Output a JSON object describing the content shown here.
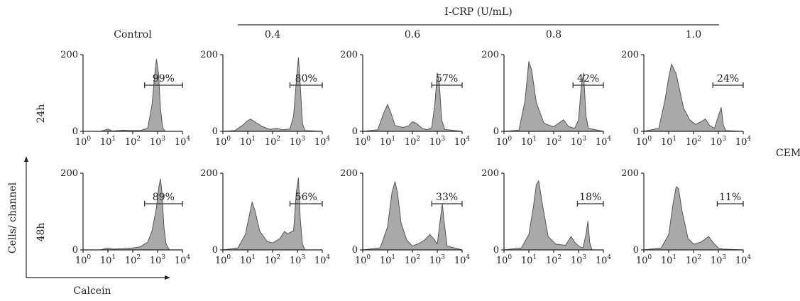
{
  "figure": {
    "header": "I-CRP (U/mL)",
    "row_labels": [
      "24h",
      "48h"
    ],
    "y_axis_label": "Cells/ channel",
    "x_axis_label": "Calcein",
    "side_label": "CEM",
    "col_titles": [
      "Control",
      "0.4",
      "0.6",
      "0.8",
      "1.0"
    ]
  },
  "chart_data": {
    "type": "area",
    "xscale": "log",
    "xlim": [
      1,
      10000
    ],
    "ylim": [
      0,
      200
    ],
    "y_ticks": [
      "0",
      "200"
    ],
    "x_ticks": [
      {
        "base": "10",
        "exp": "0"
      },
      {
        "base": "10",
        "exp": "1"
      },
      {
        "base": "10",
        "exp": "2"
      },
      {
        "base": "10",
        "exp": "3"
      },
      {
        "base": "10",
        "exp": "4"
      }
    ],
    "fill_color": "#a9a9a9",
    "line_color": "#555555",
    "panels": [
      {
        "row": 0,
        "col": 0,
        "percent": "99%",
        "gate": [
          300,
          10000
        ],
        "points": [
          [
            1,
            0
          ],
          [
            5,
            0
          ],
          [
            10,
            6
          ],
          [
            15,
            1
          ],
          [
            40,
            3
          ],
          [
            80,
            2
          ],
          [
            200,
            2
          ],
          [
            400,
            8
          ],
          [
            600,
            70
          ],
          [
            800,
            160
          ],
          [
            900,
            188
          ],
          [
            1100,
            150
          ],
          [
            1300,
            60
          ],
          [
            1600,
            10
          ],
          [
            2000,
            0
          ],
          [
            10000,
            0
          ]
        ]
      },
      {
        "row": 0,
        "col": 1,
        "percent": "80%",
        "gate": [
          500,
          10000
        ],
        "points": [
          [
            1,
            0
          ],
          [
            3,
            2
          ],
          [
            6,
            15
          ],
          [
            10,
            28
          ],
          [
            13,
            32
          ],
          [
            20,
            24
          ],
          [
            40,
            12
          ],
          [
            80,
            5
          ],
          [
            150,
            8
          ],
          [
            250,
            4
          ],
          [
            500,
            6
          ],
          [
            700,
            40
          ],
          [
            900,
            130
          ],
          [
            1100,
            192
          ],
          [
            1300,
            120
          ],
          [
            1600,
            20
          ],
          [
            2000,
            2
          ],
          [
            10000,
            0
          ]
        ]
      },
      {
        "row": 0,
        "col": 2,
        "percent": "57%",
        "gate": [
          600,
          10000
        ],
        "points": [
          [
            1,
            0
          ],
          [
            4,
            4
          ],
          [
            7,
            48
          ],
          [
            10,
            70
          ],
          [
            13,
            52
          ],
          [
            20,
            15
          ],
          [
            40,
            10
          ],
          [
            70,
            14
          ],
          [
            100,
            25
          ],
          [
            150,
            20
          ],
          [
            250,
            8
          ],
          [
            400,
            4
          ],
          [
            600,
            10
          ],
          [
            800,
            70
          ],
          [
            1000,
            152
          ],
          [
            1200,
            128
          ],
          [
            1500,
            30
          ],
          [
            2000,
            5
          ],
          [
            10000,
            0
          ]
        ]
      },
      {
        "row": 0,
        "col": 3,
        "percent": "42%",
        "gate": [
          600,
          10000
        ],
        "points": [
          [
            1,
            0
          ],
          [
            4,
            3
          ],
          [
            7,
            80
          ],
          [
            10,
            182
          ],
          [
            13,
            160
          ],
          [
            20,
            75
          ],
          [
            40,
            22
          ],
          [
            70,
            15
          ],
          [
            100,
            12
          ],
          [
            150,
            20
          ],
          [
            250,
            30
          ],
          [
            400,
            12
          ],
          [
            700,
            8
          ],
          [
            1000,
            30
          ],
          [
            1300,
            120
          ],
          [
            1600,
            152
          ],
          [
            2000,
            40
          ],
          [
            2500,
            8
          ],
          [
            10000,
            0
          ]
        ]
      },
      {
        "row": 0,
        "col": 4,
        "percent": "24%",
        "gate": [
          600,
          10000
        ],
        "points": [
          [
            1,
            0
          ],
          [
            4,
            8
          ],
          [
            7,
            80
          ],
          [
            10,
            140
          ],
          [
            13,
            175
          ],
          [
            20,
            150
          ],
          [
            40,
            60
          ],
          [
            70,
            30
          ],
          [
            120,
            18
          ],
          [
            200,
            25
          ],
          [
            300,
            32
          ],
          [
            450,
            15
          ],
          [
            700,
            8
          ],
          [
            1000,
            40
          ],
          [
            1300,
            62
          ],
          [
            1600,
            15
          ],
          [
            2000,
            2
          ],
          [
            10000,
            0
          ]
        ]
      },
      {
        "row": 1,
        "col": 0,
        "percent": "89%",
        "gate": [
          300,
          10000
        ],
        "points": [
          [
            1,
            0
          ],
          [
            5,
            0
          ],
          [
            10,
            5
          ],
          [
            15,
            2
          ],
          [
            40,
            3
          ],
          [
            100,
            5
          ],
          [
            200,
            8
          ],
          [
            400,
            20
          ],
          [
            600,
            50
          ],
          [
            900,
            110
          ],
          [
            1100,
            160
          ],
          [
            1300,
            185
          ],
          [
            1500,
            150
          ],
          [
            1800,
            60
          ],
          [
            2200,
            15
          ],
          [
            3000,
            0
          ],
          [
            10000,
            0
          ]
        ]
      },
      {
        "row": 1,
        "col": 1,
        "percent": "56%",
        "gate": [
          500,
          10000
        ],
        "points": [
          [
            1,
            0
          ],
          [
            4,
            5
          ],
          [
            8,
            40
          ],
          [
            12,
            95
          ],
          [
            15,
            125
          ],
          [
            20,
            100
          ],
          [
            30,
            50
          ],
          [
            60,
            22
          ],
          [
            100,
            18
          ],
          [
            200,
            30
          ],
          [
            300,
            48
          ],
          [
            400,
            42
          ],
          [
            500,
            45
          ],
          [
            700,
            50
          ],
          [
            900,
            150
          ],
          [
            1100,
            188
          ],
          [
            1300,
            80
          ],
          [
            1600,
            15
          ],
          [
            2000,
            0
          ],
          [
            10000,
            0
          ]
        ]
      },
      {
        "row": 1,
        "col": 2,
        "percent": "33%",
        "gate": [
          600,
          10000
        ],
        "points": [
          [
            1,
            0
          ],
          [
            5,
            5
          ],
          [
            10,
            60
          ],
          [
            15,
            150
          ],
          [
            20,
            178
          ],
          [
            25,
            150
          ],
          [
            35,
            70
          ],
          [
            60,
            25
          ],
          [
            100,
            10
          ],
          [
            200,
            18
          ],
          [
            300,
            25
          ],
          [
            500,
            40
          ],
          [
            700,
            30
          ],
          [
            1000,
            15
          ],
          [
            1300,
            75
          ],
          [
            1600,
            120
          ],
          [
            2000,
            60
          ],
          [
            2500,
            10
          ],
          [
            10000,
            0
          ]
        ]
      },
      {
        "row": 1,
        "col": 3,
        "percent": "18%",
        "gate": [
          900,
          10000
        ],
        "points": [
          [
            1,
            0
          ],
          [
            5,
            5
          ],
          [
            10,
            40
          ],
          [
            15,
            110
          ],
          [
            20,
            170
          ],
          [
            25,
            180
          ],
          [
            35,
            120
          ],
          [
            60,
            35
          ],
          [
            120,
            15
          ],
          [
            300,
            12
          ],
          [
            500,
            35
          ],
          [
            700,
            20
          ],
          [
            1000,
            10
          ],
          [
            1500,
            5
          ],
          [
            2000,
            40
          ],
          [
            2400,
            75
          ],
          [
            2800,
            20
          ],
          [
            3500,
            0
          ],
          [
            10000,
            0
          ]
        ]
      },
      {
        "row": 1,
        "col": 4,
        "percent": "11%",
        "gate": [
          900,
          10000
        ],
        "points": [
          [
            1,
            0
          ],
          [
            5,
            5
          ],
          [
            10,
            40
          ],
          [
            15,
            120
          ],
          [
            20,
            165
          ],
          [
            25,
            160
          ],
          [
            35,
            100
          ],
          [
            60,
            30
          ],
          [
            100,
            15
          ],
          [
            200,
            20
          ],
          [
            400,
            35
          ],
          [
            600,
            20
          ],
          [
            1000,
            5
          ],
          [
            1500,
            2
          ],
          [
            10000,
            0
          ]
        ]
      }
    ]
  }
}
